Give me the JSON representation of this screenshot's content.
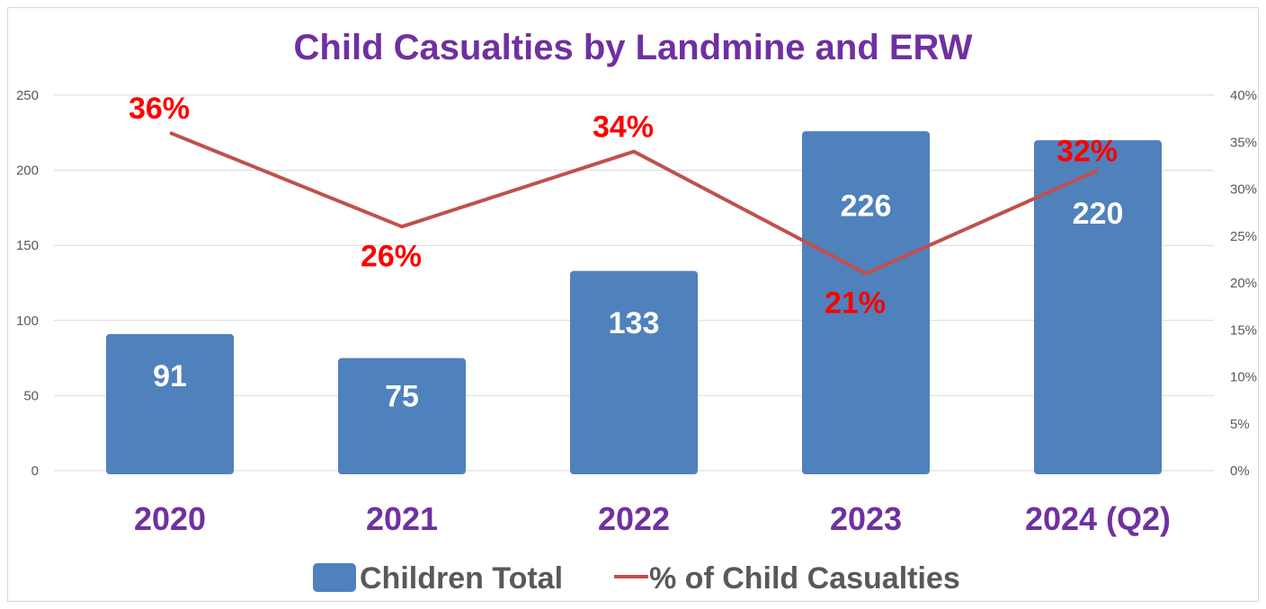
{
  "chart_data": {
    "type": "bar",
    "title": "Child Casualties by Landmine and ERW",
    "categories": [
      "2020",
      "2021",
      "2022",
      "2023",
      "2024 (Q2)"
    ],
    "series": [
      {
        "name": "Children Total",
        "kind": "bar",
        "axis": "left",
        "values": [
          91,
          75,
          133,
          226,
          220
        ],
        "labels": [
          "91",
          "75",
          "133",
          "226",
          "220"
        ],
        "color": "#4f81bd"
      },
      {
        "name": "% of Child Casualties",
        "kind": "line",
        "axis": "right",
        "values": [
          36,
          26,
          34,
          21,
          32
        ],
        "labels": [
          "36%",
          "26%",
          "34%",
          "21%",
          "32%"
        ],
        "color": "#c0504d",
        "label_color": "#ff0000"
      }
    ],
    "y_left": {
      "min": 0,
      "max": 250,
      "ticks": [
        "0",
        "50",
        "100",
        "150",
        "200",
        "250"
      ]
    },
    "y_right": {
      "min": 0,
      "max": 40,
      "ticks": [
        "0%",
        "5%",
        "10%",
        "15%",
        "20%",
        "25%",
        "30%",
        "35%",
        "40%"
      ]
    },
    "grid": true,
    "legend": "bottom",
    "colors": {
      "title": "#7030a0",
      "category": "#7030a0",
      "grid": "#d9d9d9"
    }
  }
}
